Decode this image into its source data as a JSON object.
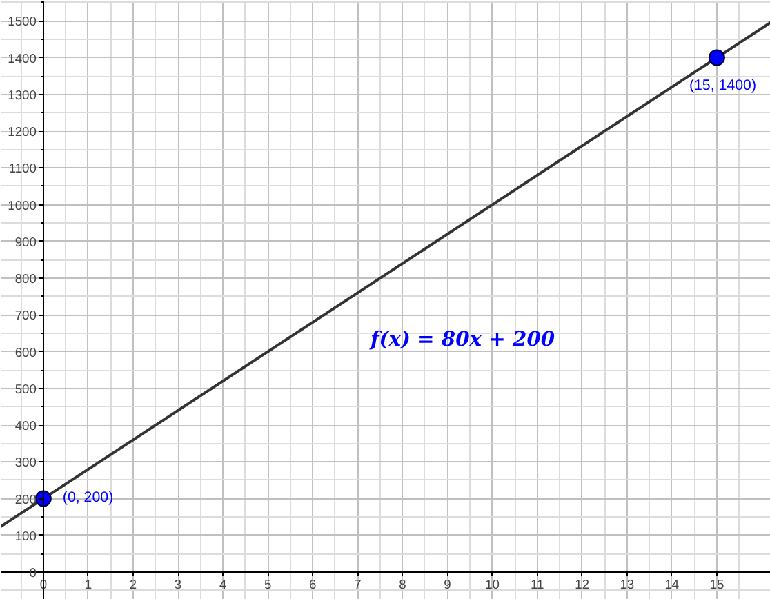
{
  "chart_data": {
    "type": "line",
    "xlim": [
      -0.95,
      16.2
    ],
    "ylim": [
      -75,
      1555
    ],
    "xticks": [
      0,
      1,
      2,
      3,
      4,
      5,
      6,
      7,
      8,
      9,
      10,
      11,
      12,
      13,
      14,
      15
    ],
    "yticks": [
      0,
      100,
      200,
      300,
      400,
      500,
      600,
      700,
      800,
      900,
      1000,
      1100,
      1200,
      1300,
      1400,
      1500
    ],
    "grid": true,
    "annotations": [
      "f(x) = 80x + 200"
    ],
    "series": [
      {
        "color": "#333333",
        "x": [
          -0.95,
          16.2
        ],
        "values": [
          124,
          1496
        ]
      },
      {
        "type": "scatter",
        "color": "#0000ff",
        "x": [
          0,
          15
        ],
        "values": [
          200,
          1400
        ],
        "marker": "circle",
        "value_labels": [
          "(0, 200)",
          "(15, 1400)"
        ]
      }
    ]
  }
}
